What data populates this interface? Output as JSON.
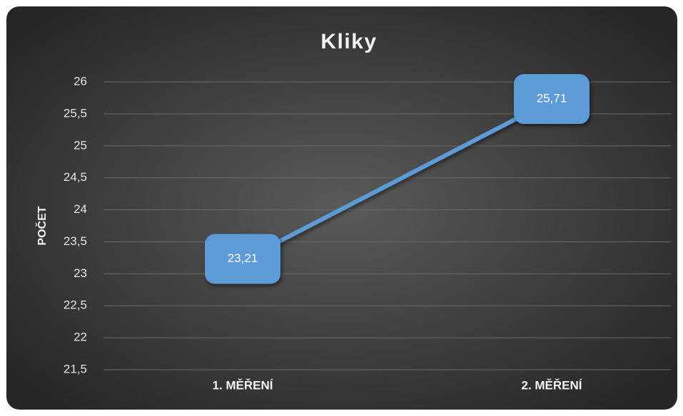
{
  "chart_data": {
    "type": "line",
    "title": "Kliky",
    "y_label": "POČET",
    "categories": [
      "1. MĚŘENÍ",
      "2. MĚŘENÍ"
    ],
    "series": [
      {
        "name": "Kliky",
        "color": "#5b9bd5",
        "values": [
          23.21,
          25.71
        ],
        "value_labels": [
          "23,21",
          "25,71"
        ]
      }
    ],
    "ylim": [
      21.5,
      26
    ],
    "yticks": [
      {
        "value": 21.5,
        "label": "21,5"
      },
      22,
      {
        "value": 22.5,
        "label": "22,5"
      },
      23,
      {
        "value": 23.5,
        "label": "23,5"
      },
      24,
      {
        "value": 24.5,
        "label": "24,5"
      },
      25,
      {
        "value": 25.5,
        "label": "25,5"
      },
      26
    ],
    "grid": true
  }
}
